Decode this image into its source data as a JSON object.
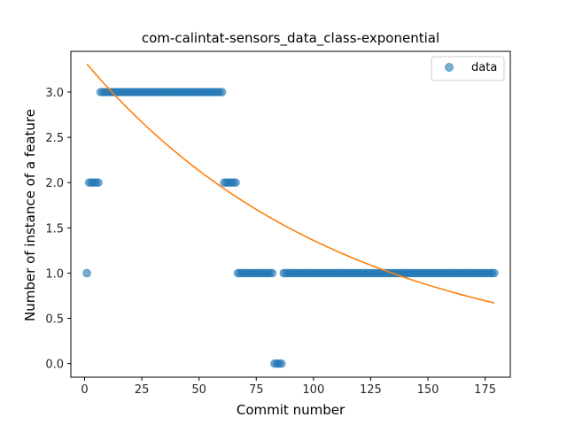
{
  "chart_data": {
    "type": "scatter",
    "title": "com-calintat-sensors_data_class-exponential",
    "xlabel": "Commit number",
    "ylabel": "Number of instance of a feature",
    "xlim": [
      -6.0,
      186.0
    ],
    "ylim": [
      -0.15,
      3.45
    ],
    "xticks": [
      0,
      25,
      50,
      75,
      100,
      125,
      150,
      175
    ],
    "yticks": [
      0.0,
      0.5,
      1.0,
      1.5,
      2.0,
      2.5,
      3.0
    ],
    "xtick_labels": [
      "0",
      "25",
      "50",
      "75",
      "100",
      "125",
      "150",
      "175"
    ],
    "ytick_labels": [
      "0.0",
      "0.5",
      "1.0",
      "1.5",
      "2.0",
      "2.5",
      "3.0"
    ],
    "grid": false,
    "legend": {
      "position": "top-right",
      "entries": [
        "data"
      ]
    },
    "colors": {
      "data": "#1f77b4",
      "fit": "#ff7f0e"
    },
    "series": [
      {
        "name": "data",
        "kind": "scatter",
        "segments": [
          {
            "x_start": 1,
            "x_end": 1,
            "y": 1
          },
          {
            "x_start": 2,
            "x_end": 6,
            "y": 2
          },
          {
            "x_start": 7,
            "x_end": 60,
            "y": 3
          },
          {
            "x_start": 61,
            "x_end": 66,
            "y": 2
          },
          {
            "x_start": 67,
            "x_end": 82,
            "y": 1
          },
          {
            "x_start": 83,
            "x_end": 86,
            "y": 0
          },
          {
            "x_start": 87,
            "x_end": 179,
            "y": 1
          }
        ]
      },
      {
        "kind": "line",
        "curve": "exponential",
        "x_start": 1,
        "x_end": 179,
        "y_start": 3.31,
        "y_end": 0.67
      }
    ]
  }
}
